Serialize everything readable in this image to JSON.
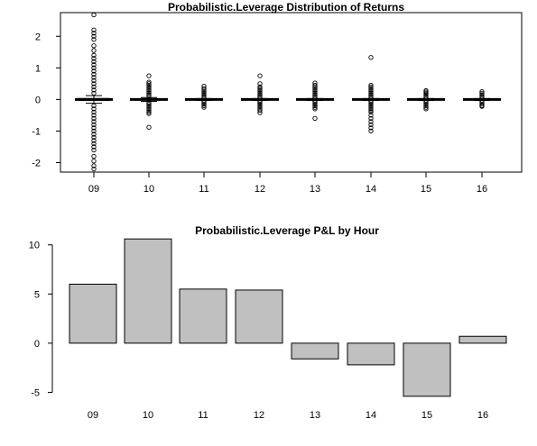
{
  "chart_data": [
    {
      "type": "box",
      "title": "Probabilistic.Leverage Distribution of Returns",
      "xlabel": "",
      "ylabel": "",
      "categories": [
        "09",
        "10",
        "11",
        "12",
        "13",
        "14",
        "15",
        "16"
      ],
      "ylim": [
        -2.3,
        2.75
      ],
      "yticks": [
        -2,
        -1,
        0,
        1,
        2
      ],
      "box_frame": true,
      "grid": false,
      "boxes": [
        {
          "category": "09",
          "median": 0.0,
          "q1": -0.03,
          "q3": 0.03,
          "whisker_low": -0.12,
          "whisker_high": 0.12,
          "outliers": [
            2.68,
            2.2,
            2.1,
            2.0,
            1.9,
            1.7,
            1.55,
            1.4,
            1.3,
            1.2,
            1.1,
            1.0,
            0.9,
            0.8,
            0.7,
            0.6,
            0.5,
            0.4,
            0.3,
            0.2,
            -0.2,
            -0.3,
            -0.4,
            -0.5,
            -0.6,
            -0.7,
            -0.8,
            -0.9,
            -1.0,
            -1.1,
            -1.2,
            -1.3,
            -1.4,
            -1.5,
            -1.6,
            -1.8,
            -1.95,
            -2.1,
            -2.2
          ]
        },
        {
          "category": "10",
          "median": 0.0,
          "q1": -0.02,
          "q3": 0.02,
          "whisker_low": -0.06,
          "whisker_high": 0.06,
          "outliers": [
            0.75,
            0.55,
            0.5,
            0.45,
            0.4,
            0.35,
            0.3,
            0.25,
            0.2,
            0.15,
            0.1,
            -0.1,
            -0.15,
            -0.2,
            -0.25,
            -0.3,
            -0.35,
            -0.4,
            -0.45,
            -0.88
          ]
        },
        {
          "category": "11",
          "median": 0.0,
          "q1": -0.01,
          "q3": 0.01,
          "whisker_low": -0.03,
          "whisker_high": 0.03,
          "outliers": [
            0.42,
            0.35,
            0.3,
            0.25,
            0.2,
            0.15,
            0.1,
            0.06,
            -0.06,
            -0.1,
            -0.15,
            -0.2,
            -0.25
          ]
        },
        {
          "category": "12",
          "median": 0.0,
          "q1": -0.01,
          "q3": 0.01,
          "whisker_low": -0.03,
          "whisker_high": 0.03,
          "outliers": [
            0.75,
            0.5,
            0.4,
            0.35,
            0.3,
            0.25,
            0.2,
            0.15,
            0.1,
            0.06,
            -0.06,
            -0.1,
            -0.15,
            -0.2,
            -0.25,
            -0.3,
            -0.35,
            -0.42
          ]
        },
        {
          "category": "13",
          "median": 0.0,
          "q1": -0.01,
          "q3": 0.01,
          "whisker_low": -0.03,
          "whisker_high": 0.03,
          "outliers": [
            0.52,
            0.45,
            0.4,
            0.35,
            0.3,
            0.25,
            0.2,
            0.15,
            0.1,
            0.06,
            -0.06,
            -0.1,
            -0.15,
            -0.2,
            -0.25,
            -0.3,
            -0.6
          ]
        },
        {
          "category": "14",
          "median": 0.0,
          "q1": -0.01,
          "q3": 0.01,
          "whisker_low": -0.03,
          "whisker_high": 0.03,
          "outliers": [
            1.33,
            0.45,
            0.4,
            0.35,
            0.3,
            0.25,
            0.2,
            0.15,
            0.1,
            0.06,
            -0.06,
            -0.1,
            -0.15,
            -0.2,
            -0.25,
            -0.3,
            -0.35,
            -0.4,
            -0.5,
            -0.6,
            -0.7,
            -0.8,
            -0.9,
            -1.0
          ]
        },
        {
          "category": "15",
          "median": 0.0,
          "q1": -0.01,
          "q3": 0.01,
          "whisker_low": -0.03,
          "whisker_high": 0.03,
          "outliers": [
            0.28,
            0.24,
            0.2,
            0.15,
            0.1,
            0.06,
            -0.06,
            -0.1,
            -0.15,
            -0.2,
            -0.25,
            -0.3
          ]
        },
        {
          "category": "16",
          "median": 0.0,
          "q1": -0.01,
          "q3": 0.01,
          "whisker_low": -0.03,
          "whisker_high": 0.03,
          "outliers": [
            0.25,
            0.2,
            0.15,
            0.1,
            0.06,
            -0.06,
            -0.1,
            -0.15,
            -0.2,
            -0.22
          ]
        }
      ]
    },
    {
      "type": "bar",
      "title": "Probabilistic.Leverage P&L by Hour",
      "xlabel": "",
      "ylabel": "",
      "categories": [
        "09",
        "10",
        "11",
        "12",
        "13",
        "14",
        "15",
        "16"
      ],
      "values": [
        6.0,
        10.6,
        5.5,
        5.4,
        -1.6,
        -2.2,
        -5.4,
        0.7
      ],
      "ylim": [
        -5.6,
        10.8
      ],
      "yticks": [
        -5,
        0,
        5,
        10
      ],
      "bar_color": "#c0c0c0",
      "grid": false
    }
  ]
}
